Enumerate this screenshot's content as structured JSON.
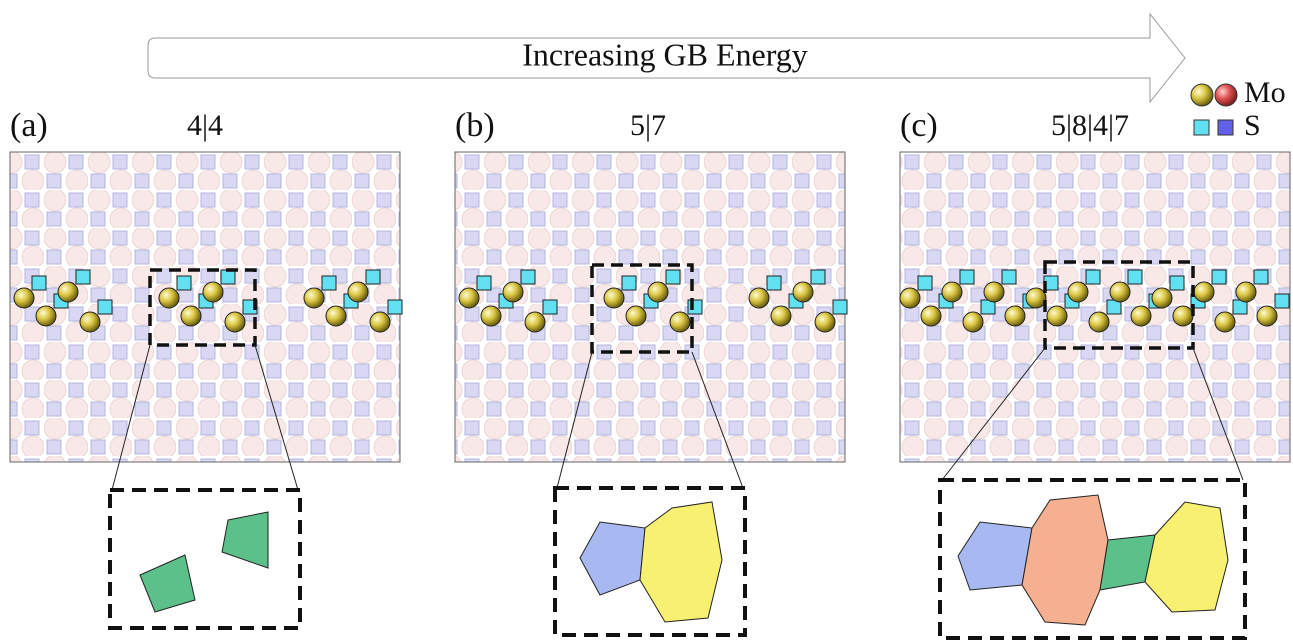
{
  "header": {
    "arrow_label": "Increasing GB Energy"
  },
  "legend": [
    {
      "label": "Mo"
    },
    {
      "label": "S"
    }
  ],
  "panels": [
    {
      "label": "(a)",
      "title": "4|4"
    },
    {
      "label": "(b)",
      "title": "5|7"
    },
    {
      "label": "(c)",
      "title": "5|8|4|7"
    }
  ]
}
